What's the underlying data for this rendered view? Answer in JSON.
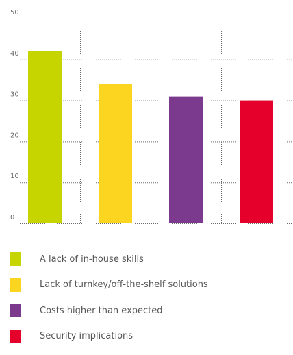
{
  "chart_data": {
    "type": "bar",
    "categories": [
      "A lack of in-house skills",
      "Lack of turnkey/off-the-shelf solutions",
      "Costs higher than expected",
      "Security implications"
    ],
    "values": [
      42,
      34,
      31,
      30
    ],
    "colors": [
      "#c6d400",
      "#fcd520",
      "#7c3a8e",
      "#e4002b"
    ],
    "ylim": [
      0,
      50
    ],
    "yticks": [
      "0",
      "10",
      "20",
      "30",
      "40",
      "50"
    ],
    "grid": true,
    "legend_position": "bottom"
  }
}
